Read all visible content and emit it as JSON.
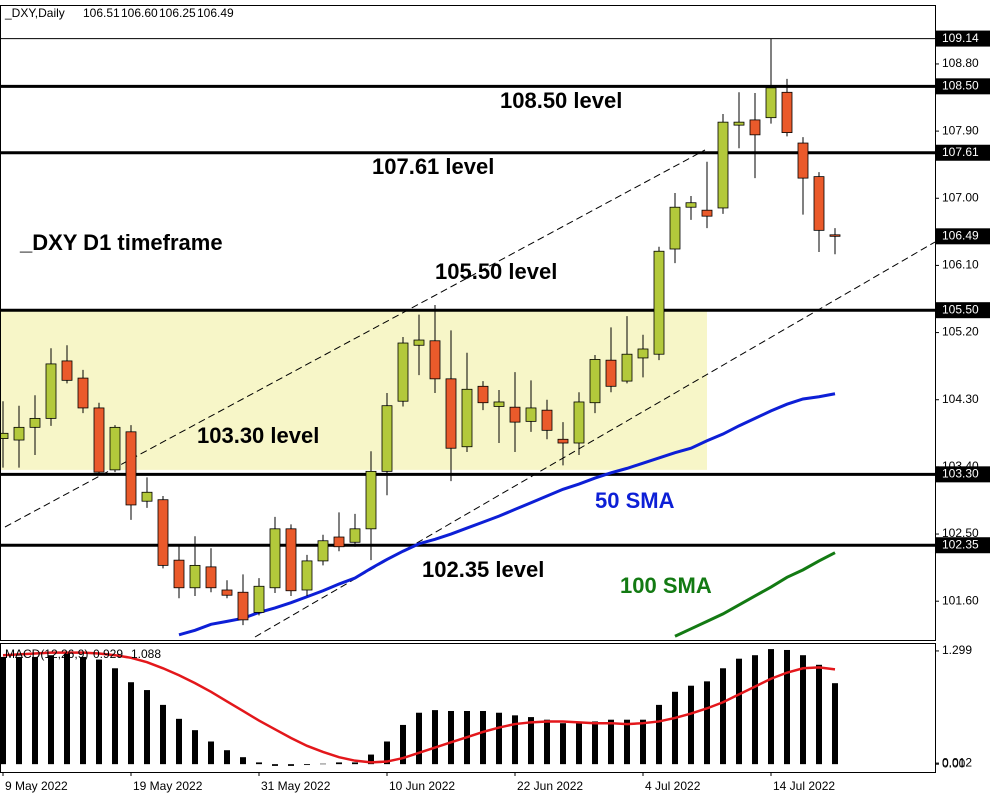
{
  "chart_data": [
    {
      "type": "candlestick",
      "title": "_DXY,Daily",
      "ohlc_text": [
        "106.51",
        "106.60",
        "106.25",
        "106.49"
      ],
      "annotation": "_DXY D1 timeframe",
      "categories": [
        "9 May 2022",
        null,
        null,
        null,
        null,
        null,
        null,
        null,
        "19 May 2022",
        null,
        null,
        null,
        null,
        null,
        null,
        null,
        "31 May 2022",
        null,
        null,
        null,
        null,
        null,
        null,
        null,
        "10 Jun 2022",
        null,
        null,
        null,
        null,
        null,
        null,
        null,
        "22 Jun 2022",
        null,
        null,
        null,
        null,
        null,
        null,
        null,
        "4 Jul 2022",
        null,
        null,
        null,
        null,
        null,
        null,
        null,
        "14 Jul 2022",
        null,
        null,
        null,
        null
      ],
      "open": [
        103.78,
        103.76,
        103.93,
        104.05,
        104.82,
        104.59,
        104.19,
        103.36,
        103.87,
        102.94,
        102.96,
        102.15,
        101.78,
        102.06,
        101.75,
        101.72,
        101.45,
        101.78,
        102.57,
        101.75,
        102.14,
        102.46,
        102.39,
        102.57,
        103.34,
        104.28,
        105.03,
        105.09,
        104.58,
        103.67,
        104.48,
        104.21,
        104.2,
        104.01,
        104.16,
        103.77,
        103.72,
        104.26,
        104.83,
        104.55,
        104.86,
        104.91,
        106.32,
        106.88,
        106.84,
        106.87,
        107.98,
        108.05,
        108.08,
        108.42,
        107.74,
        107.29,
        106.51
      ],
      "high": [
        104.28,
        104.22,
        104.36,
        104.99,
        105.03,
        104.7,
        104.26,
        103.96,
        103.96,
        103.26,
        103.01,
        102.35,
        102.47,
        102.31,
        101.88,
        101.96,
        101.91,
        102.73,
        102.63,
        102.22,
        102.49,
        102.79,
        102.77,
        103.61,
        104.39,
        105.14,
        105.44,
        105.57,
        105.23,
        104.93,
        104.55,
        104.43,
        104.67,
        104.56,
        104.3,
        104.0,
        104.4,
        104.9,
        105.27,
        105.42,
        105.17,
        106.35,
        107.07,
        107.03,
        107.49,
        108.13,
        108.42,
        108.41,
        109.14,
        108.6,
        107.82,
        107.35,
        106.6
      ],
      "low": [
        103.39,
        103.39,
        103.56,
        103.95,
        104.52,
        104.12,
        103.29,
        103.33,
        102.69,
        102.85,
        102.04,
        101.64,
        101.67,
        101.72,
        101.64,
        101.28,
        101.41,
        101.71,
        101.67,
        101.67,
        102.08,
        102.27,
        102.33,
        102.15,
        103.02,
        104.21,
        104.63,
        104.39,
        103.21,
        103.6,
        104.16,
        103.72,
        103.6,
        103.87,
        103.77,
        103.42,
        103.56,
        104.12,
        104.4,
        104.52,
        104.6,
        104.83,
        106.13,
        106.71,
        106.6,
        106.79,
        107.67,
        107.27,
        108.0,
        107.83,
        106.78,
        106.28,
        106.25
      ],
      "close": [
        103.85,
        103.93,
        104.05,
        104.78,
        104.56,
        104.19,
        103.33,
        103.93,
        102.89,
        103.06,
        102.08,
        101.78,
        102.08,
        101.78,
        101.68,
        101.35,
        101.8,
        102.57,
        101.74,
        102.14,
        102.41,
        102.33,
        102.57,
        103.34,
        104.22,
        105.06,
        105.1,
        104.58,
        103.65,
        104.44,
        104.26,
        104.27,
        104.0,
        104.19,
        103.89,
        103.72,
        104.27,
        104.84,
        104.48,
        104.91,
        104.98,
        106.29,
        106.88,
        106.94,
        106.76,
        108.02,
        108.02,
        107.85,
        108.48,
        107.88,
        107.27,
        106.57,
        106.49
      ],
      "up_color": "#b3c93b",
      "down_color": "#ea5a2b",
      "ylim": [
        101.08,
        109.59
      ],
      "yticks": [
        {
          "value": 108.8,
          "label": "108.80"
        },
        {
          "value": 107.9,
          "label": "107.90"
        },
        {
          "value": 107.0,
          "label": "107.00"
        },
        {
          "value": 106.1,
          "label": "106.10"
        },
        {
          "value": 105.2,
          "label": "105.20"
        },
        {
          "value": 104.3,
          "label": "104.30"
        },
        {
          "value": 103.4,
          "label": "103.40"
        },
        {
          "value": 102.5,
          "label": "102.50"
        },
        {
          "value": 101.6,
          "label": "101.60"
        }
      ],
      "levels": [
        {
          "price": {
            "value": 108.5,
            "label": "108.50"
          },
          "text": "108.50 level"
        },
        {
          "price": 107.61,
          "text": "107.61 level"
        },
        {
          "price": {
            "value": 105.5,
            "label": "105.50"
          },
          "text": "105.50 level"
        },
        {
          "price": {
            "value": 103.3,
            "label": "103.30"
          },
          "text": "103.30 level"
        },
        {
          "price": 102.35,
          "text": "102.35 level"
        }
      ],
      "high_marker": 109.14,
      "last_marker": 106.49,
      "zone": [
        103.36,
        105.5
      ],
      "zone_color": "#f7f6c8",
      "series": [
        {
          "name": "50 SMA",
          "color": "#0d1fd6",
          "values": [
            null,
            null,
            null,
            null,
            null,
            null,
            null,
            null,
            null,
            null,
            null,
            101.15,
            101.21,
            101.29,
            101.33,
            101.37,
            101.45,
            101.51,
            101.58,
            101.66,
            101.74,
            101.83,
            101.91,
            102.04,
            102.16,
            102.27,
            102.37,
            102.43,
            102.5,
            102.58,
            102.66,
            102.74,
            102.83,
            102.92,
            103.01,
            103.1,
            103.17,
            103.25,
            103.32,
            103.38,
            103.45,
            103.52,
            103.59,
            103.65,
            103.75,
            103.84,
            103.95,
            104.05,
            104.15,
            104.24,
            104.31,
            104.34,
            104.38
          ]
        },
        {
          "name": "100 SMA",
          "color": "#137a13",
          "values": [
            null,
            null,
            null,
            null,
            null,
            null,
            null,
            null,
            null,
            null,
            null,
            null,
            null,
            null,
            null,
            null,
            null,
            null,
            null,
            null,
            null,
            null,
            null,
            null,
            null,
            null,
            null,
            null,
            null,
            null,
            null,
            null,
            null,
            null,
            null,
            null,
            null,
            null,
            null,
            null,
            null,
            null,
            101.13,
            101.23,
            101.33,
            101.43,
            101.55,
            101.67,
            101.79,
            101.92,
            102.02,
            102.14,
            102.25
          ]
        }
      ]
    },
    {
      "type": "macd",
      "title": "MACD(12,26,9)",
      "histogram": {
        "color": "#000000",
        "values": [
          1.23,
          1.23,
          1.23,
          1.25,
          1.28,
          1.23,
          1.2,
          1.1,
          0.94,
          0.85,
          0.68,
          0.52,
          0.39,
          0.26,
          0.16,
          0.08,
          0.02,
          -0.02,
          -0.02,
          -0.01,
          0.005,
          0.02,
          0.02,
          0.11,
          0.26,
          0.45,
          0.59,
          0.62,
          0.61,
          0.61,
          0.61,
          0.59,
          0.56,
          0.54,
          0.51,
          0.47,
          0.47,
          0.49,
          0.51,
          0.51,
          0.51,
          0.68,
          0.83,
          0.9,
          0.95,
          1.1,
          1.21,
          1.25,
          1.32,
          1.31,
          1.25,
          1.14,
          0.929
        ]
      },
      "signal": {
        "color": "#e3171b",
        "values": [
          1.25,
          1.26,
          1.27,
          1.28,
          1.28,
          1.28,
          1.27,
          1.25,
          1.22,
          1.17,
          1.1,
          1.02,
          0.93,
          0.83,
          0.72,
          0.61,
          0.5,
          0.4,
          0.3,
          0.21,
          0.14,
          0.08,
          0.04,
          0.02,
          0.03,
          0.07,
          0.13,
          0.19,
          0.25,
          0.31,
          0.37,
          0.42,
          0.46,
          0.48,
          0.49,
          0.49,
          0.48,
          0.47,
          0.47,
          0.46,
          0.47,
          0.49,
          0.53,
          0.58,
          0.64,
          0.71,
          0.8,
          0.89,
          0.98,
          1.05,
          1.1,
          1.11,
          1.088
        ]
      },
      "ylim": [
        -0.09,
        1.39
      ],
      "yticks": [
        1.299,
        {
          "value": 0,
          "label": "0.00"
        },
        0.012
      ]
    }
  ]
}
